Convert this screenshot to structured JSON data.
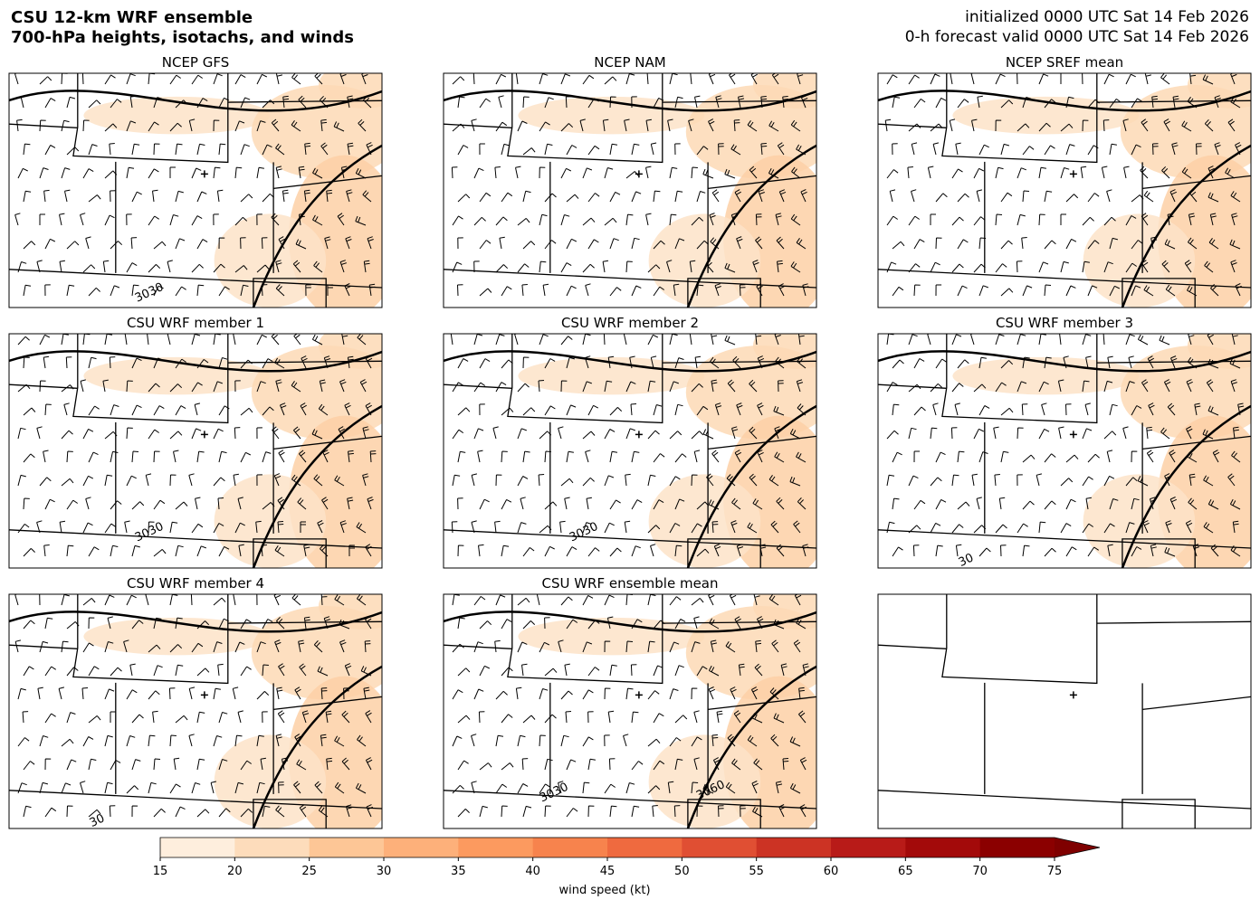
{
  "header": {
    "title_line1": "CSU 12-km WRF ensemble",
    "title_line2": "700-hPa heights, isotachs, and winds",
    "init_line": "initialized 0000 UTC Sat 14 Feb 2026",
    "valid_line": "0-h forecast valid 0000 UTC Sat 14 Feb 2026"
  },
  "panels": [
    {
      "title": "NCEP GFS",
      "contour_labels": [
        "3030"
      ]
    },
    {
      "title": "NCEP NAM",
      "contour_labels": []
    },
    {
      "title": "NCEP SREF mean",
      "contour_labels": []
    },
    {
      "title": "CSU WRF member 1",
      "contour_labels": [
        "3030"
      ]
    },
    {
      "title": "CSU WRF member 2",
      "contour_labels": [
        "3030"
      ]
    },
    {
      "title": "CSU WRF member 3",
      "contour_labels": [
        "30"
      ]
    },
    {
      "title": "CSU WRF member 4",
      "contour_labels": [
        "30"
      ]
    },
    {
      "title": "CSU WRF ensemble mean",
      "contour_labels": [
        "3030",
        "3060"
      ]
    }
  ],
  "colorbar": {
    "label": "wind speed (kt)",
    "ticks": [
      15,
      20,
      25,
      30,
      35,
      40,
      45,
      50,
      55,
      60,
      65,
      70,
      75
    ],
    "colors": [
      "#feeedd",
      "#fddcbb",
      "#fdc696",
      "#fdb07a",
      "#fc9a5f",
      "#f7834d",
      "#ef6a3f",
      "#e04f33",
      "#cc3324",
      "#b81b18",
      "#a30a0a",
      "#8b0000"
    ],
    "extend_color": "#7f0000"
  }
}
